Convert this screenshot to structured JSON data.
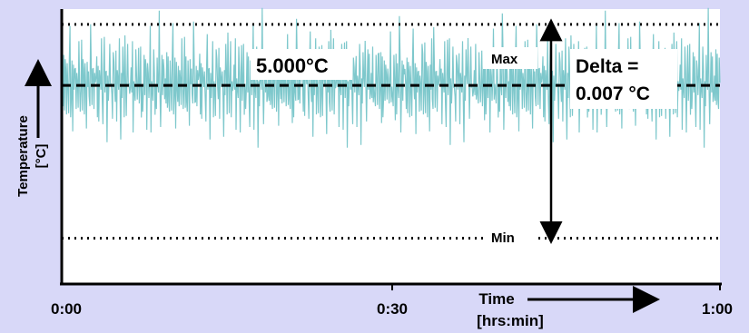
{
  "chart_data": {
    "type": "line",
    "title": "",
    "xlabel": "Time\n[hrs:min]",
    "ylabel": "Temperature\n[°C]",
    "x_ticks": [
      "0:00",
      "0:30",
      "1:00"
    ],
    "xlim": [
      0,
      60
    ],
    "ylim": [
      4.9935,
      5.0025
    ],
    "grid": false,
    "series": [
      {
        "color": "#7ec8cc",
        "x_start": 0,
        "x_step": 0.0625,
        "values": [
          5.0,
          5.0005,
          4.9995,
          5.001,
          4.999,
          5.0005,
          5.0,
          4.9995,
          5.001,
          5.0,
          4.999,
          5.0005,
          5.0015,
          4.9995,
          5.0,
          5.001,
          4.9985,
          5.0005,
          4.9995,
          5.0,
          5.001,
          4.9995,
          5.0005,
          5.0,
          4.999,
          5.001,
          5.0005,
          4.9995,
          5.0,
          5.0015,
          4.999,
          5.0005,
          5.0,
          4.9995,
          5.001,
          5.0,
          4.9985,
          5.0005,
          4.9995,
          5.001,
          5.0,
          4.9995,
          5.002,
          5.0005,
          4.999,
          5.0,
          5.001,
          4.9995,
          5.0005,
          5.0
        ]
      }
    ],
    "reference_lines": [
      {
        "label": "5.000°C",
        "value": 5.0,
        "style": "dashed"
      },
      {
        "label": "Max",
        "value": 5.002,
        "style": "dotted"
      },
      {
        "label": "Min",
        "value": 4.995,
        "style": "dotted"
      }
    ],
    "annotations": {
      "nominal": "5.000°C",
      "max": "Max",
      "min": "Min",
      "delta_line1": "Delta =",
      "delta_line2": "0.007 °C"
    },
    "colors": {
      "background": "#d8d8f8",
      "plot_area": "#ffffff",
      "signal": "#7ec8cc"
    }
  }
}
